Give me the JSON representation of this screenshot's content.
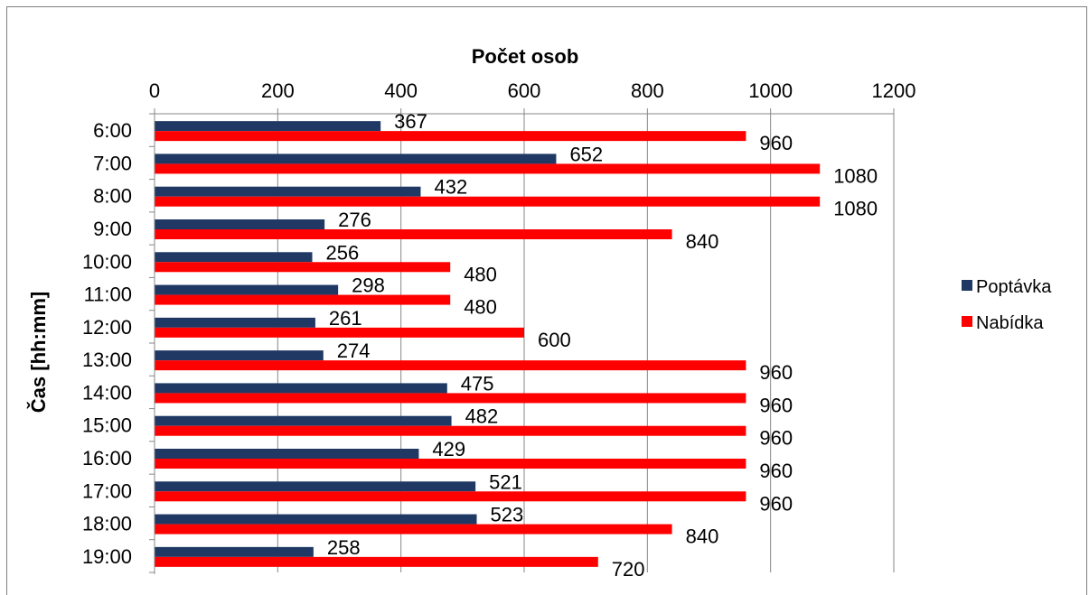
{
  "chart_data": {
    "type": "bar",
    "orientation": "horizontal",
    "x_axis_position": "top",
    "categories": [
      "6:00",
      "7:00",
      "8:00",
      "9:00",
      "10:00",
      "11:00",
      "12:00",
      "13:00",
      "14:00",
      "15:00",
      "16:00",
      "17:00",
      "18:00",
      "19:00"
    ],
    "series": [
      {
        "name": "Poptávka",
        "color": "#1f3864",
        "values": [
          367,
          652,
          432,
          276,
          256,
          298,
          261,
          274,
          475,
          482,
          429,
          521,
          523,
          258
        ]
      },
      {
        "name": "Nabídka",
        "color": "#ff0000",
        "values": [
          960,
          1080,
          1080,
          840,
          480,
          480,
          600,
          960,
          960,
          960,
          960,
          960,
          840,
          720
        ]
      }
    ],
    "title": "",
    "xlabel": "Počet osob",
    "ylabel": "Čas [hh:mm]",
    "xlim": [
      0,
      1200
    ],
    "x_ticks": [
      "0",
      "200",
      "400",
      "600",
      "800",
      "1000",
      "1200"
    ],
    "grid": true,
    "legend_position": "right"
  }
}
